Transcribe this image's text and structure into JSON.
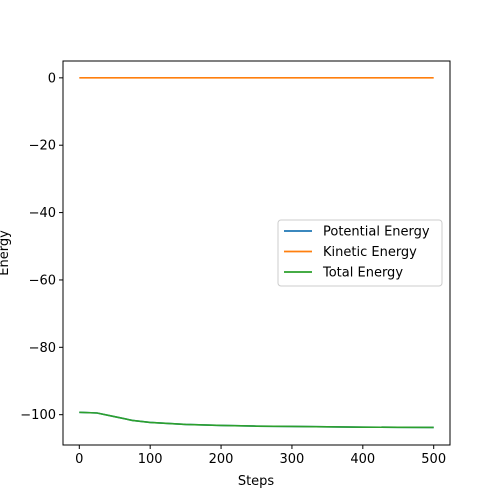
{
  "chart_data": {
    "type": "line",
    "title": "",
    "xlabel": "Steps",
    "ylabel": "Energy",
    "xlim": [
      -23,
      523
    ],
    "ylim": [
      -109,
      5
    ],
    "xticks": [
      0,
      100,
      200,
      300,
      400,
      500
    ],
    "xtick_labels": [
      "0",
      "100",
      "200",
      "300",
      "400",
      "500"
    ],
    "yticks": [
      0,
      -20,
      -40,
      -60,
      -80,
      -100
    ],
    "ytick_labels": [
      "0",
      "−20",
      "−40",
      "−60",
      "−80",
      "−100"
    ],
    "grid": false,
    "legend_position": "center-right",
    "series": [
      {
        "name": "Potential Energy",
        "color": "#1f77b4",
        "x": [
          0,
          25,
          50,
          75,
          100,
          150,
          200,
          250,
          300,
          350,
          400,
          450,
          500
        ],
        "y": [
          -99.3,
          -99.5,
          -100.6,
          -101.7,
          -102.3,
          -102.9,
          -103.2,
          -103.4,
          -103.5,
          -103.6,
          -103.7,
          -103.75,
          -103.8
        ]
      },
      {
        "name": "Kinetic Energy",
        "color": "#ff7f0e",
        "x": [
          0,
          100,
          200,
          300,
          400,
          500
        ],
        "y": [
          0,
          0,
          0,
          0,
          0,
          0
        ]
      },
      {
        "name": "Total Energy",
        "color": "#2ca02c",
        "x": [
          0,
          25,
          50,
          75,
          100,
          150,
          200,
          250,
          300,
          350,
          400,
          450,
          500
        ],
        "y": [
          -99.3,
          -99.5,
          -100.6,
          -101.7,
          -102.3,
          -102.9,
          -103.2,
          -103.4,
          -103.5,
          -103.6,
          -103.7,
          -103.75,
          -103.8
        ]
      }
    ]
  }
}
